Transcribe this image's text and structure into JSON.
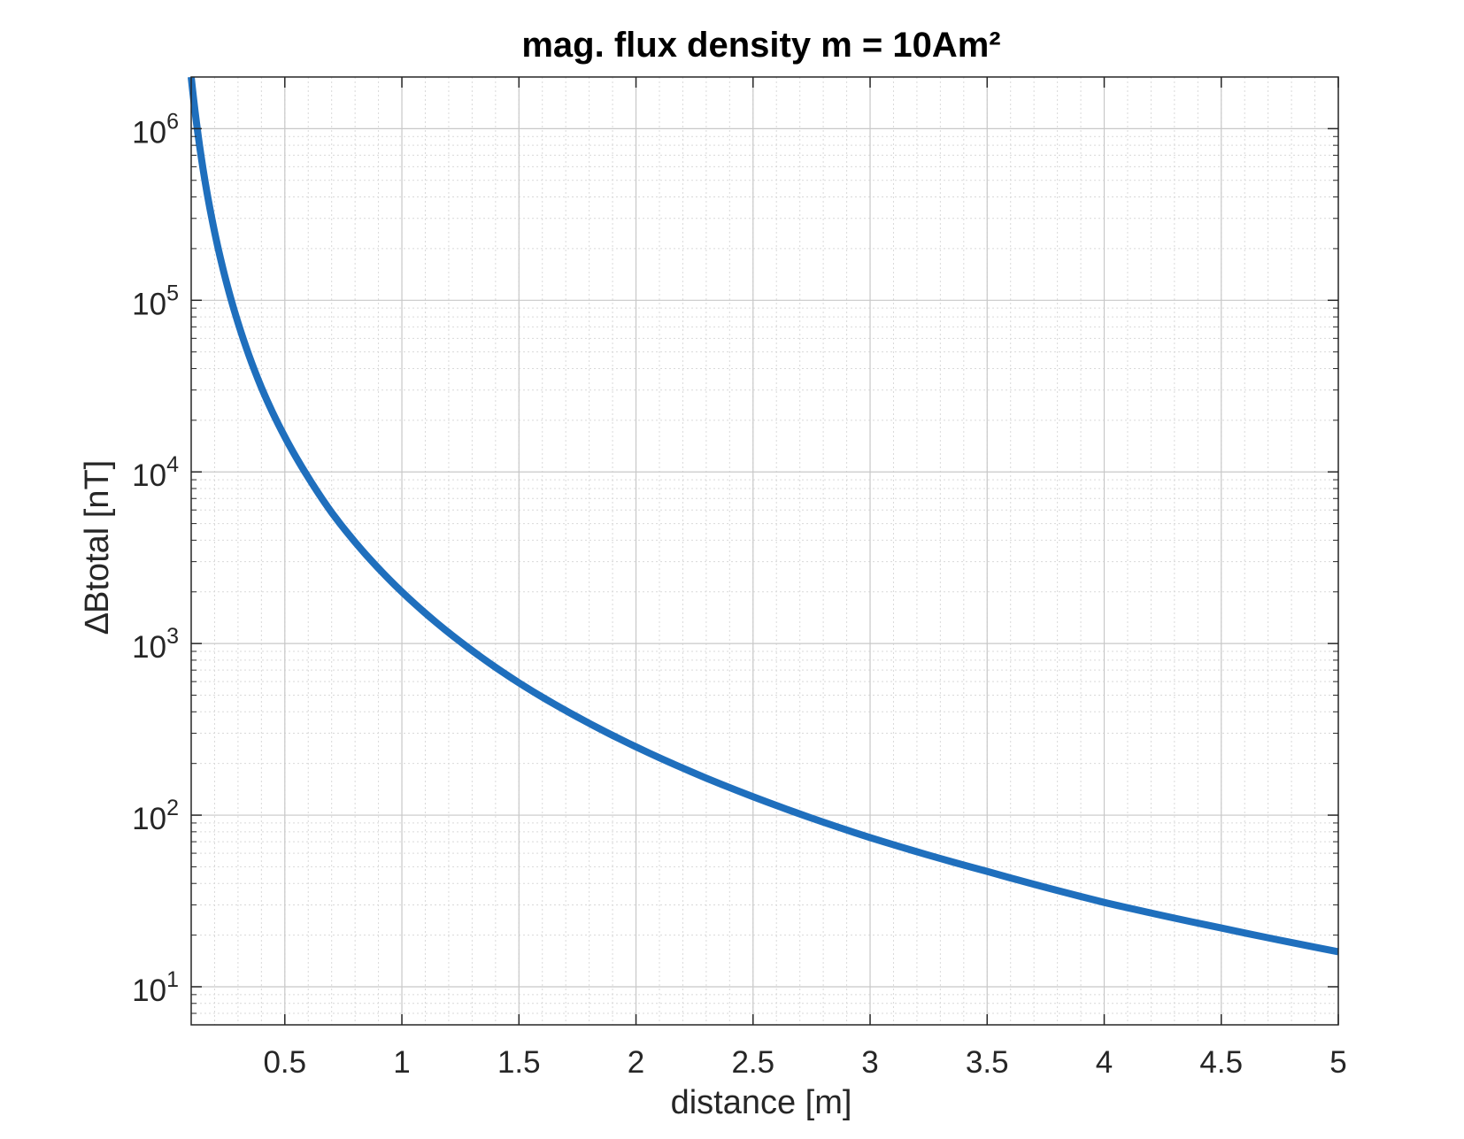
{
  "chart_data": {
    "type": "line",
    "title": "mag. flux density m = 10Am²",
    "xlabel": "distance [m]",
    "ylabel": "∆Btotal [nT]",
    "xlim": [
      0.1,
      5
    ],
    "ylim": [
      6,
      2000000
    ],
    "yscale": "log",
    "grid": true,
    "minor_grid": true,
    "xticks": [
      {
        "v": 0.5,
        "label": "0.5"
      },
      {
        "v": 1,
        "label": "1"
      },
      {
        "v": 1.5,
        "label": "1.5"
      },
      {
        "v": 2,
        "label": "2"
      },
      {
        "v": 2.5,
        "label": "2.5"
      },
      {
        "v": 3,
        "label": "3"
      },
      {
        "v": 3.5,
        "label": "3.5"
      },
      {
        "v": 4,
        "label": "4"
      },
      {
        "v": 4.5,
        "label": "4.5"
      },
      {
        "v": 5,
        "label": "5"
      }
    ],
    "yticks": [
      {
        "v": 10,
        "base": "10",
        "exp": "1"
      },
      {
        "v": 100,
        "base": "10",
        "exp": "2"
      },
      {
        "v": 1000,
        "base": "10",
        "exp": "3"
      },
      {
        "v": 10000,
        "base": "10",
        "exp": "4"
      },
      {
        "v": 100000,
        "base": "10",
        "exp": "5"
      },
      {
        "v": 1000000,
        "base": "10",
        "exp": "6"
      }
    ],
    "series": [
      {
        "color": "#1f6fbd",
        "x": [
          0.1,
          0.15,
          0.2,
          0.25,
          0.3,
          0.4,
          0.5,
          0.6,
          0.7,
          0.8,
          1.0,
          1.25,
          1.5,
          1.75,
          2.0,
          2.5,
          3.0,
          3.5,
          4.0,
          4.5,
          5.0
        ],
        "y": [
          2000000,
          590000,
          250000,
          128000,
          74000,
          31000,
          16000,
          9300,
          5800,
          3900,
          2000,
          1024,
          590,
          373,
          250,
          128,
          74,
          47,
          31,
          22,
          16
        ]
      }
    ]
  }
}
